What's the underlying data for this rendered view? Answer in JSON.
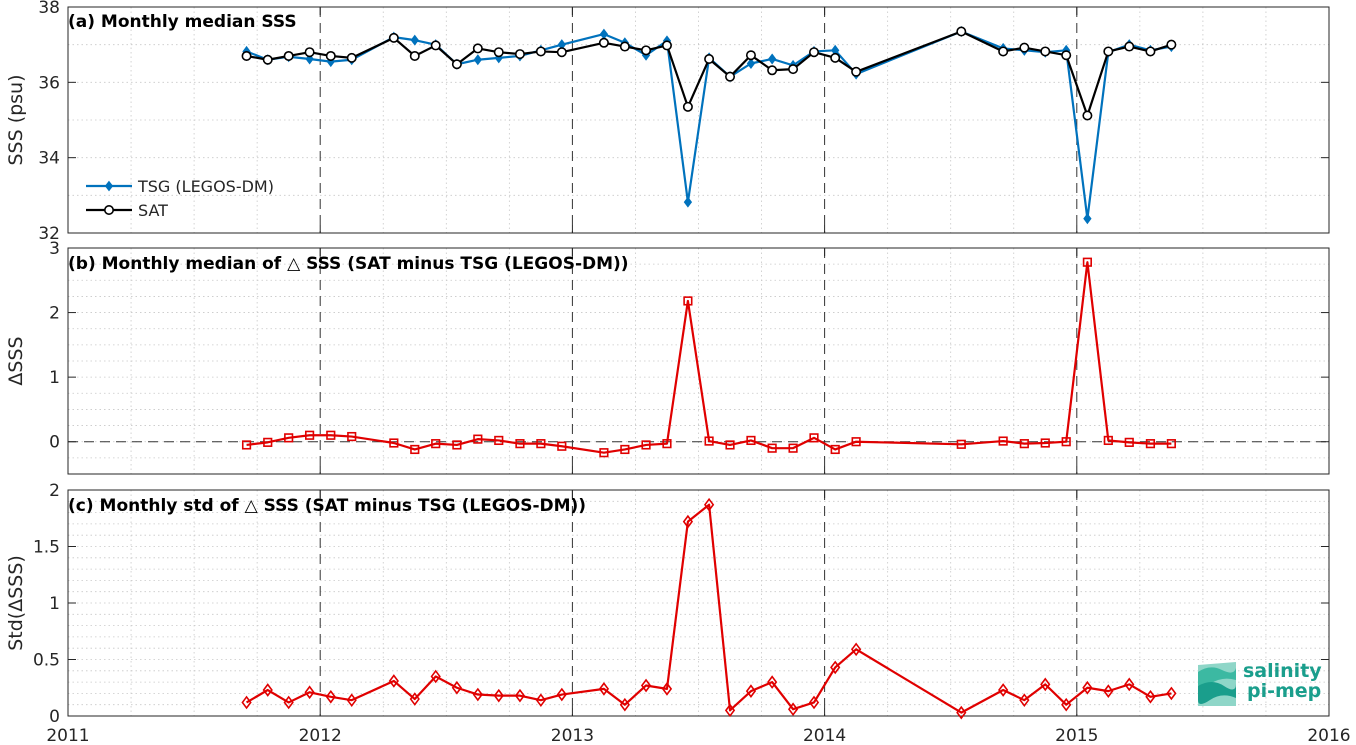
{
  "colors": {
    "tsg": "#0072BD",
    "sat": "#000000",
    "delta": "#E00000",
    "grid": "#c8c8c8"
  },
  "logo": {
    "line1": "salinity",
    "line2": "pi-mep",
    "icon": "wave-logo-icon"
  },
  "chart_data": [
    {
      "type": "line",
      "title": "(a) Monthly median SSS",
      "ylabel": "SSS (psu)",
      "xlim": [
        2011,
        2016
      ],
      "ylim": [
        32,
        38
      ],
      "yticks": [
        32,
        34,
        36,
        38
      ],
      "xticks": [
        "2011",
        "2012",
        "2013",
        "2014",
        "2015",
        "2016"
      ],
      "legend": "bottom-left",
      "series": [
        {
          "name": "TSG (LEGOS-DM)",
          "x": [
            2011.708,
            2011.792,
            2011.875,
            2011.958,
            2012.042,
            2012.125,
            2012.292,
            2012.375,
            2012.458,
            2012.542,
            2012.625,
            2012.708,
            2012.792,
            2012.875,
            2012.958,
            2013.125,
            2013.208,
            2013.292,
            2013.375,
            2013.458,
            2013.542,
            2013.625,
            2013.708,
            2013.792,
            2013.875,
            2013.958,
            2014.042,
            2014.125,
            2014.542,
            2014.708,
            2014.792,
            2014.875,
            2014.958,
            2015.042,
            2015.125,
            2015.208,
            2015.292,
            2015.375
          ],
          "values": [
            36.82,
            36.6,
            36.68,
            36.62,
            36.55,
            36.6,
            37.2,
            37.12,
            37.0,
            36.48,
            36.6,
            36.65,
            36.7,
            36.85,
            37.0,
            37.28,
            37.05,
            36.72,
            37.1,
            32.82,
            36.65,
            36.15,
            36.5,
            36.62,
            36.45,
            36.82,
            36.85,
            36.22,
            37.35,
            36.9,
            36.85,
            36.8,
            36.85,
            32.38,
            36.8,
            37.0,
            36.85,
            36.95
          ]
        },
        {
          "name": "SAT",
          "x": [
            2011.708,
            2011.792,
            2011.875,
            2011.958,
            2012.042,
            2012.125,
            2012.292,
            2012.375,
            2012.458,
            2012.542,
            2012.625,
            2012.708,
            2012.792,
            2012.875,
            2012.958,
            2013.125,
            2013.208,
            2013.292,
            2013.375,
            2013.458,
            2013.542,
            2013.625,
            2013.708,
            2013.792,
            2013.875,
            2013.958,
            2014.042,
            2014.125,
            2014.542,
            2014.708,
            2014.792,
            2014.875,
            2014.958,
            2015.042,
            2015.125,
            2015.208,
            2015.292,
            2015.375
          ],
          "values": [
            36.7,
            36.6,
            36.7,
            36.8,
            36.7,
            36.65,
            37.18,
            36.7,
            36.98,
            36.48,
            36.9,
            36.8,
            36.75,
            36.82,
            36.8,
            37.05,
            36.95,
            36.85,
            36.98,
            35.35,
            36.62,
            36.15,
            36.72,
            36.32,
            36.35,
            36.8,
            36.65,
            36.28,
            37.35,
            36.82,
            36.92,
            36.82,
            36.72,
            35.12,
            36.82,
            36.95,
            36.82,
            37.0
          ]
        }
      ]
    },
    {
      "type": "line",
      "title": "(b) Monthly median of △ SSS (SAT minus TSG (LEGOS-DM))",
      "ylabel": "ΔSSS",
      "xlim": [
        2011,
        2016
      ],
      "ylim": [
        -0.5,
        3
      ],
      "yticks": [
        0,
        1,
        2,
        3
      ],
      "xticks": [
        "2011",
        "2012",
        "2013",
        "2014",
        "2015",
        "2016"
      ],
      "series": [
        {
          "x": [
            2011.708,
            2011.792,
            2011.875,
            2011.958,
            2012.042,
            2012.125,
            2012.292,
            2012.375,
            2012.458,
            2012.542,
            2012.625,
            2012.708,
            2012.792,
            2012.875,
            2012.958,
            2013.125,
            2013.208,
            2013.292,
            2013.375,
            2013.458,
            2013.542,
            2013.625,
            2013.708,
            2013.792,
            2013.875,
            2013.958,
            2014.042,
            2014.125,
            2014.542,
            2014.708,
            2014.792,
            2014.875,
            2014.958,
            2015.042,
            2015.125,
            2015.208,
            2015.292,
            2015.375
          ],
          "values": [
            -0.05,
            -0.01,
            0.06,
            0.1,
            0.1,
            0.08,
            -0.02,
            -0.12,
            -0.03,
            -0.05,
            0.04,
            0.02,
            -0.03,
            -0.03,
            -0.07,
            -0.17,
            -0.12,
            -0.05,
            -0.03,
            2.18,
            0.01,
            -0.05,
            0.02,
            -0.1,
            -0.1,
            0.06,
            -0.12,
            0.0,
            -0.04,
            0.01,
            -0.03,
            -0.02,
            0.0,
            2.78,
            0.02,
            -0.01,
            -0.03,
            -0.03
          ]
        }
      ]
    },
    {
      "type": "line",
      "title": "(c) Monthly std of △ SSS (SAT minus TSG (LEGOS-DM))",
      "ylabel": "Std(ΔSSS)",
      "xlim": [
        2011,
        2016
      ],
      "ylim": [
        0,
        2
      ],
      "yticks": [
        0,
        0.5,
        1,
        1.5,
        2
      ],
      "xticks": [
        "2011",
        "2012",
        "2013",
        "2014",
        "2015",
        "2016"
      ],
      "series": [
        {
          "x": [
            2011.708,
            2011.792,
            2011.875,
            2011.958,
            2012.042,
            2012.125,
            2012.292,
            2012.375,
            2012.458,
            2012.542,
            2012.625,
            2012.708,
            2012.792,
            2012.875,
            2012.958,
            2013.125,
            2013.208,
            2013.292,
            2013.375,
            2013.458,
            2013.542,
            2013.625,
            2013.708,
            2013.792,
            2013.875,
            2013.958,
            2014.042,
            2014.125,
            2014.542,
            2014.708,
            2014.792,
            2014.875,
            2014.958,
            2015.042,
            2015.125,
            2015.208,
            2015.292,
            2015.375
          ],
          "values": [
            0.12,
            0.23,
            0.12,
            0.21,
            0.17,
            0.14,
            0.31,
            0.15,
            0.35,
            0.25,
            0.19,
            0.18,
            0.18,
            0.14,
            0.19,
            0.24,
            0.1,
            0.27,
            0.24,
            1.72,
            1.87,
            0.05,
            0.22,
            0.3,
            0.06,
            0.12,
            0.43,
            0.59,
            0.03,
            0.23,
            0.14,
            0.28,
            0.1,
            0.25,
            0.22,
            0.28,
            0.17,
            0.2
          ]
        }
      ]
    }
  ]
}
